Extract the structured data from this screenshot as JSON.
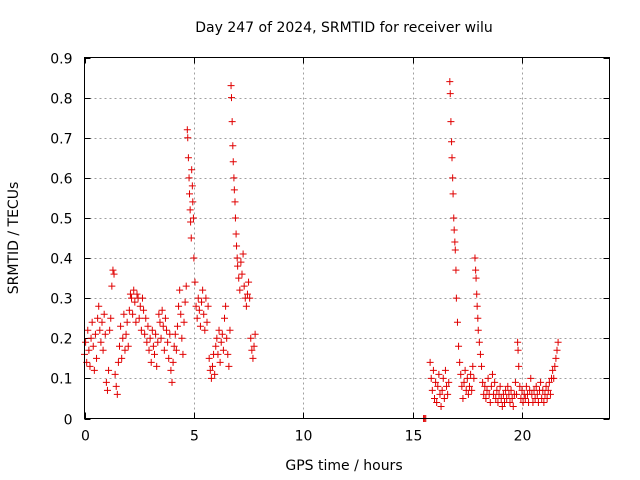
{
  "chart_data": {
    "type": "scatter",
    "title": "Day 247 of 2024, SRMTID for receiver wilu",
    "xlabel": "GPS time / hours",
    "ylabel": "SRMTID / TECUs",
    "xlim": [
      0,
      24
    ],
    "ylim": [
      0,
      0.9
    ],
    "xticks": [
      0,
      5,
      10,
      15,
      20
    ],
    "xtick_labels": [
      "0",
      "5",
      "10",
      "15",
      "20"
    ],
    "yticks": [
      0,
      0.1,
      0.2,
      0.3,
      0.4,
      0.5,
      0.6,
      0.7,
      0.8,
      0.9
    ],
    "ytick_labels": [
      "0",
      "0.1",
      "0.2",
      "0.3",
      "0.4",
      "0.5",
      "0.6",
      "0.7",
      "0.8",
      "0.9"
    ],
    "grid": true,
    "marker": "+",
    "color": "#e00000",
    "series": [
      {
        "name": "SRMTID",
        "points": [
          [
            0.0,
            0.16
          ],
          [
            0.05,
            0.19
          ],
          [
            0.1,
            0.14
          ],
          [
            0.15,
            0.22
          ],
          [
            0.2,
            0.17
          ],
          [
            0.25,
            0.13
          ],
          [
            0.3,
            0.2
          ],
          [
            0.35,
            0.24
          ],
          [
            0.4,
            0.18
          ],
          [
            0.45,
            0.12
          ],
          [
            0.5,
            0.21
          ],
          [
            0.55,
            0.15
          ],
          [
            0.6,
            0.25
          ],
          [
            0.65,
            0.28
          ],
          [
            0.7,
            0.22
          ],
          [
            0.75,
            0.19
          ],
          [
            0.8,
            0.24
          ],
          [
            0.85,
            0.17
          ],
          [
            0.9,
            0.26
          ],
          [
            0.95,
            0.21
          ],
          [
            1.0,
            0.09
          ],
          [
            1.05,
            0.07
          ],
          [
            1.1,
            0.12
          ],
          [
            1.15,
            0.22
          ],
          [
            1.2,
            0.25
          ],
          [
            1.25,
            0.33
          ],
          [
            1.3,
            0.37
          ],
          [
            1.35,
            0.36
          ],
          [
            1.4,
            0.11
          ],
          [
            1.45,
            0.08
          ],
          [
            1.5,
            0.06
          ],
          [
            1.55,
            0.14
          ],
          [
            1.6,
            0.18
          ],
          [
            1.65,
            0.23
          ],
          [
            1.7,
            0.15
          ],
          [
            1.75,
            0.2
          ],
          [
            1.8,
            0.26
          ],
          [
            1.85,
            0.17
          ],
          [
            1.9,
            0.21
          ],
          [
            1.95,
            0.24
          ],
          [
            2.0,
            0.18
          ],
          [
            2.05,
            0.27
          ],
          [
            2.1,
            0.31
          ],
          [
            2.15,
            0.3
          ],
          [
            2.2,
            0.26
          ],
          [
            2.25,
            0.32
          ],
          [
            2.3,
            0.29
          ],
          [
            2.35,
            0.24
          ],
          [
            2.4,
            0.31
          ],
          [
            2.45,
            0.3
          ],
          [
            2.5,
            0.25
          ],
          [
            2.55,
            0.28
          ],
          [
            2.6,
            0.22
          ],
          [
            2.65,
            0.3
          ],
          [
            2.7,
            0.27
          ],
          [
            2.75,
            0.21
          ],
          [
            2.8,
            0.25
          ],
          [
            2.85,
            0.19
          ],
          [
            2.9,
            0.23
          ],
          [
            2.95,
            0.17
          ],
          [
            3.0,
            0.2
          ],
          [
            3.05,
            0.14
          ],
          [
            3.1,
            0.22
          ],
          [
            3.15,
            0.18
          ],
          [
            3.2,
            0.16
          ],
          [
            3.25,
            0.21
          ],
          [
            3.3,
            0.13
          ],
          [
            3.35,
            0.19
          ],
          [
            3.4,
            0.26
          ],
          [
            3.45,
            0.24
          ],
          [
            3.5,
            0.2
          ],
          [
            3.55,
            0.27
          ],
          [
            3.6,
            0.23
          ],
          [
            3.65,
            0.17
          ],
          [
            3.7,
            0.25
          ],
          [
            3.75,
            0.22
          ],
          [
            3.8,
            0.19
          ],
          [
            3.85,
            0.15
          ],
          [
            3.9,
            0.21
          ],
          [
            3.95,
            0.12
          ],
          [
            4.0,
            0.09
          ],
          [
            4.05,
            0.14
          ],
          [
            4.1,
            0.18
          ],
          [
            4.15,
            0.21
          ],
          [
            4.2,
            0.17
          ],
          [
            4.25,
            0.23
          ],
          [
            4.3,
            0.28
          ],
          [
            4.35,
            0.32
          ],
          [
            4.4,
            0.26
          ],
          [
            4.45,
            0.2
          ],
          [
            4.5,
            0.16
          ],
          [
            4.55,
            0.24
          ],
          [
            4.6,
            0.29
          ],
          [
            4.65,
            0.33
          ],
          [
            4.7,
            0.72
          ],
          [
            4.72,
            0.7
          ],
          [
            4.75,
            0.65
          ],
          [
            4.78,
            0.6
          ],
          [
            4.8,
            0.56
          ],
          [
            4.83,
            0.52
          ],
          [
            4.85,
            0.49
          ],
          [
            4.88,
            0.45
          ],
          [
            4.9,
            0.62
          ],
          [
            4.93,
            0.58
          ],
          [
            4.95,
            0.54
          ],
          [
            4.98,
            0.5
          ],
          [
            5.0,
            0.4
          ],
          [
            5.05,
            0.34
          ],
          [
            5.1,
            0.28
          ],
          [
            5.15,
            0.25
          ],
          [
            5.2,
            0.3
          ],
          [
            5.25,
            0.27
          ],
          [
            5.3,
            0.23
          ],
          [
            5.35,
            0.29
          ],
          [
            5.4,
            0.32
          ],
          [
            5.45,
            0.26
          ],
          [
            5.5,
            0.22
          ],
          [
            5.55,
            0.3
          ],
          [
            5.6,
            0.24
          ],
          [
            5.65,
            0.28
          ],
          [
            5.7,
            0.15
          ],
          [
            5.75,
            0.12
          ],
          [
            5.8,
            0.1
          ],
          [
            5.85,
            0.13
          ],
          [
            5.9,
            0.16
          ],
          [
            5.95,
            0.11
          ],
          [
            6.0,
            0.18
          ],
          [
            6.05,
            0.2
          ],
          [
            6.1,
            0.16
          ],
          [
            6.15,
            0.22
          ],
          [
            6.2,
            0.14
          ],
          [
            6.25,
            0.19
          ],
          [
            6.3,
            0.21
          ],
          [
            6.35,
            0.17
          ],
          [
            6.4,
            0.25
          ],
          [
            6.45,
            0.28
          ],
          [
            6.5,
            0.2
          ],
          [
            6.55,
            0.16
          ],
          [
            6.6,
            0.13
          ],
          [
            6.65,
            0.22
          ],
          [
            6.7,
            0.83
          ],
          [
            6.72,
            0.8
          ],
          [
            6.75,
            0.74
          ],
          [
            6.78,
            0.68
          ],
          [
            6.8,
            0.64
          ],
          [
            6.83,
            0.6
          ],
          [
            6.85,
            0.57
          ],
          [
            6.88,
            0.54
          ],
          [
            6.9,
            0.5
          ],
          [
            6.93,
            0.46
          ],
          [
            6.95,
            0.43
          ],
          [
            6.98,
            0.4
          ],
          [
            7.0,
            0.38
          ],
          [
            7.05,
            0.35
          ],
          [
            7.1,
            0.32
          ],
          [
            7.15,
            0.39
          ],
          [
            7.2,
            0.36
          ],
          [
            7.25,
            0.41
          ],
          [
            7.3,
            0.33
          ],
          [
            7.35,
            0.3
          ],
          [
            7.4,
            0.28
          ],
          [
            7.45,
            0.31
          ],
          [
            7.5,
            0.34
          ],
          [
            7.55,
            0.3
          ],
          [
            7.6,
            0.2
          ],
          [
            7.65,
            0.17
          ],
          [
            7.7,
            0.15
          ],
          [
            7.75,
            0.18
          ],
          [
            7.8,
            0.21
          ],
          [
            15.5,
            0.0
          ],
          [
            15.55,
            0.0
          ],
          [
            15.6,
            0.0
          ],
          [
            15.8,
            0.14
          ],
          [
            15.85,
            0.1
          ],
          [
            15.9,
            0.07
          ],
          [
            15.95,
            0.12
          ],
          [
            16.0,
            0.05
          ],
          [
            16.05,
            0.09
          ],
          [
            16.1,
            0.04
          ],
          [
            16.15,
            0.08
          ],
          [
            16.2,
            0.11
          ],
          [
            16.25,
            0.06
          ],
          [
            16.3,
            0.03
          ],
          [
            16.35,
            0.07
          ],
          [
            16.4,
            0.1
          ],
          [
            16.45,
            0.05
          ],
          [
            16.5,
            0.12
          ],
          [
            16.55,
            0.08
          ],
          [
            16.6,
            0.06
          ],
          [
            16.65,
            0.09
          ],
          [
            16.7,
            0.84
          ],
          [
            16.72,
            0.81
          ],
          [
            16.75,
            0.74
          ],
          [
            16.78,
            0.69
          ],
          [
            16.8,
            0.65
          ],
          [
            16.83,
            0.6
          ],
          [
            16.85,
            0.56
          ],
          [
            16.88,
            0.5
          ],
          [
            16.9,
            0.47
          ],
          [
            16.93,
            0.44
          ],
          [
            16.95,
            0.42
          ],
          [
            16.98,
            0.37
          ],
          [
            17.0,
            0.3
          ],
          [
            17.05,
            0.24
          ],
          [
            17.1,
            0.18
          ],
          [
            17.15,
            0.14
          ],
          [
            17.2,
            0.11
          ],
          [
            17.25,
            0.08
          ],
          [
            17.3,
            0.05
          ],
          [
            17.35,
            0.09
          ],
          [
            17.4,
            0.12
          ],
          [
            17.45,
            0.07
          ],
          [
            17.5,
            0.1
          ],
          [
            17.55,
            0.06
          ],
          [
            17.6,
            0.08
          ],
          [
            17.65,
            0.11
          ],
          [
            17.7,
            0.07
          ],
          [
            17.75,
            0.13
          ],
          [
            17.8,
            0.1
          ],
          [
            17.85,
            0.4
          ],
          [
            17.88,
            0.37
          ],
          [
            17.9,
            0.35
          ],
          [
            17.93,
            0.31
          ],
          [
            17.95,
            0.28
          ],
          [
            17.98,
            0.25
          ],
          [
            18.0,
            0.22
          ],
          [
            18.05,
            0.19
          ],
          [
            18.1,
            0.16
          ],
          [
            18.15,
            0.13
          ],
          [
            18.2,
            0.09
          ],
          [
            18.25,
            0.06
          ],
          [
            18.3,
            0.08
          ],
          [
            18.35,
            0.05
          ],
          [
            18.4,
            0.07
          ],
          [
            18.45,
            0.1
          ],
          [
            18.5,
            0.06
          ],
          [
            18.55,
            0.04
          ],
          [
            18.6,
            0.08
          ],
          [
            18.65,
            0.11
          ],
          [
            18.7,
            0.06
          ],
          [
            18.75,
            0.09
          ],
          [
            18.8,
            0.05
          ],
          [
            18.85,
            0.07
          ],
          [
            18.9,
            0.04
          ],
          [
            18.95,
            0.06
          ],
          [
            19.0,
            0.08
          ],
          [
            19.05,
            0.05
          ],
          [
            19.1,
            0.03
          ],
          [
            19.15,
            0.06
          ],
          [
            19.2,
            0.04
          ],
          [
            19.25,
            0.07
          ],
          [
            19.3,
            0.05
          ],
          [
            19.35,
            0.08
          ],
          [
            19.4,
            0.06
          ],
          [
            19.45,
            0.04
          ],
          [
            19.5,
            0.07
          ],
          [
            19.55,
            0.05
          ],
          [
            19.6,
            0.03
          ],
          [
            19.65,
            0.06
          ],
          [
            19.7,
            0.09
          ],
          [
            19.75,
            0.06
          ],
          [
            19.8,
            0.19
          ],
          [
            19.82,
            0.17
          ],
          [
            19.85,
            0.13
          ],
          [
            19.9,
            0.08
          ],
          [
            19.95,
            0.05
          ],
          [
            20.0,
            0.07
          ],
          [
            20.05,
            0.04
          ],
          [
            20.1,
            0.06
          ],
          [
            20.15,
            0.05
          ],
          [
            20.2,
            0.08
          ],
          [
            20.25,
            0.06
          ],
          [
            20.3,
            0.04
          ],
          [
            20.35,
            0.07
          ],
          [
            20.4,
            0.1
          ],
          [
            20.45,
            0.06
          ],
          [
            20.5,
            0.04
          ],
          [
            20.55,
            0.07
          ],
          [
            20.6,
            0.05
          ],
          [
            20.65,
            0.08
          ],
          [
            20.7,
            0.06
          ],
          [
            20.75,
            0.04
          ],
          [
            20.8,
            0.07
          ],
          [
            20.85,
            0.09
          ],
          [
            20.9,
            0.05
          ],
          [
            20.95,
            0.07
          ],
          [
            21.0,
            0.04
          ],
          [
            21.05,
            0.06
          ],
          [
            21.1,
            0.08
          ],
          [
            21.15,
            0.05
          ],
          [
            21.2,
            0.07
          ],
          [
            21.25,
            0.09
          ],
          [
            21.3,
            0.06
          ],
          [
            21.35,
            0.1
          ],
          [
            21.4,
            0.12
          ],
          [
            21.45,
            0.1
          ],
          [
            21.5,
            0.13
          ],
          [
            21.55,
            0.15
          ],
          [
            21.6,
            0.17
          ],
          [
            21.65,
            0.19
          ]
        ]
      }
    ]
  }
}
